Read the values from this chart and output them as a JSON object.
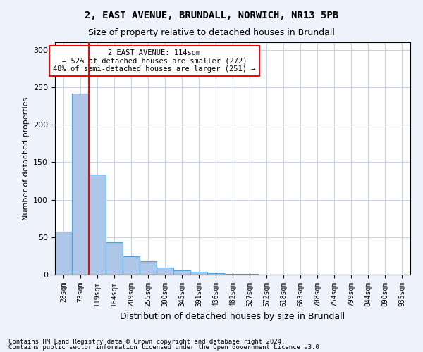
{
  "title1": "2, EAST AVENUE, BRUNDALL, NORWICH, NR13 5PB",
  "title2": "Size of property relative to detached houses in Brundall",
  "xlabel": "Distribution of detached houses by size in Brundall",
  "ylabel": "Number of detached properties",
  "bar_color": "#aec6e8",
  "bar_edge_color": "#5a9fd4",
  "categories": [
    "28sqm",
    "73sqm",
    "119sqm",
    "164sqm",
    "209sqm",
    "255sqm",
    "300sqm",
    "345sqm",
    "391sqm",
    "436sqm",
    "482sqm",
    "527sqm",
    "572sqm",
    "618sqm",
    "663sqm",
    "708sqm",
    "754sqm",
    "799sqm",
    "844sqm",
    "890sqm",
    "935sqm"
  ],
  "values": [
    57,
    241,
    133,
    43,
    24,
    18,
    9,
    6,
    4,
    2,
    1,
    1,
    0,
    0,
    0,
    0,
    0,
    0,
    0,
    0,
    0
  ],
  "ylim": [
    0,
    310
  ],
  "yticks": [
    0,
    50,
    100,
    150,
    200,
    250,
    300
  ],
  "annotation_text": "2 EAST AVENUE: 114sqm\n← 52% of detached houses are smaller (272)\n48% of semi-detached houses are larger (251) →",
  "annotation_box_color": "white",
  "annotation_box_edge_color": "red",
  "vline_color": "red",
  "footnote1": "Contains HM Land Registry data © Crown copyright and database right 2024.",
  "footnote2": "Contains public sector information licensed under the Open Government Licence v3.0.",
  "bg_color": "#eef2fb",
  "plot_bg_color": "white",
  "grid_color": "#c8d0e8"
}
